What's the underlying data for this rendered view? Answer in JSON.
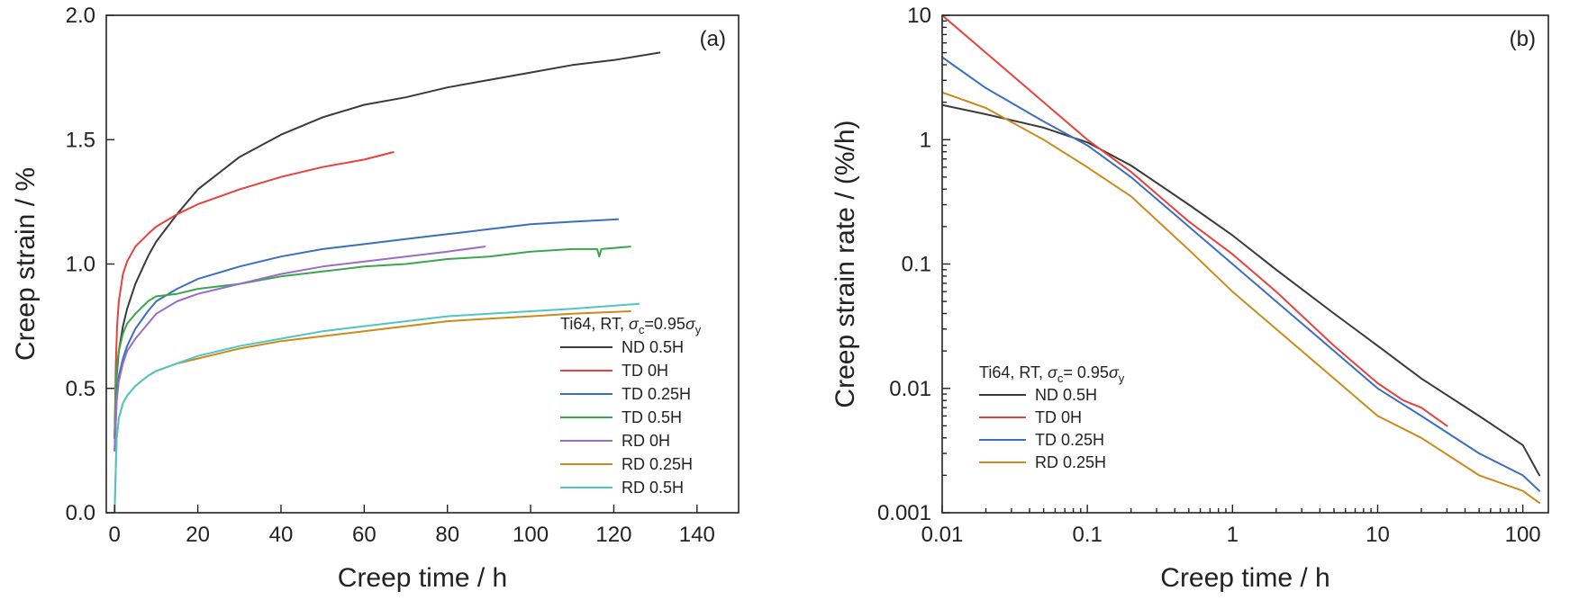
{
  "chart_data": [
    {
      "type": "line",
      "panel_label": "(a)",
      "xlabel": "Creep time / h",
      "ylabel": "Creep strain / %",
      "xlim": [
        -2,
        150
      ],
      "ylim": [
        0,
        2.0
      ],
      "xscale": "linear",
      "yscale": "linear",
      "xticks": [
        0,
        20,
        40,
        60,
        80,
        100,
        120,
        140
      ],
      "xtick_labels": [
        "0",
        "20",
        "40",
        "60",
        "80",
        "100",
        "120",
        "140"
      ],
      "yticks": [
        0,
        0.5,
        1.0,
        1.5,
        2.0
      ],
      "ytick_labels": [
        "0.0",
        "0.5",
        "1.0",
        "1.5",
        "2.0"
      ],
      "grid": false,
      "legend": {
        "placement": "bottom-right",
        "title": {
          "prefix": "Ti64, RT, ",
          "sym1": "σ",
          "sub1": "c",
          "mid": "=0.95",
          "sym2": "σ",
          "sub2": "y"
        }
      },
      "series": [
        {
          "name": "ND 0.5H",
          "color": "#3a3a3a",
          "x": [
            0,
            0.5,
            1,
            2,
            3,
            5,
            8,
            10,
            15,
            20,
            30,
            40,
            50,
            60,
            70,
            80,
            90,
            100,
            110,
            120,
            131
          ],
          "y": [
            0.3,
            0.55,
            0.65,
            0.75,
            0.82,
            0.92,
            1.03,
            1.09,
            1.2,
            1.3,
            1.43,
            1.52,
            1.59,
            1.64,
            1.67,
            1.71,
            1.74,
            1.77,
            1.8,
            1.82,
            1.85
          ]
        },
        {
          "name": "TD 0H",
          "color": "#e8413c",
          "x": [
            0,
            0.3,
            0.6,
            1,
            2,
            3,
            5,
            8,
            10,
            15,
            20,
            30,
            40,
            50,
            60,
            67
          ],
          "y": [
            0.3,
            0.6,
            0.75,
            0.85,
            0.96,
            1.01,
            1.07,
            1.12,
            1.15,
            1.2,
            1.24,
            1.3,
            1.35,
            1.39,
            1.42,
            1.45
          ]
        },
        {
          "name": "TD 0.25H",
          "color": "#3a6fc0",
          "x": [
            0,
            0.5,
            1,
            2,
            3,
            5,
            8,
            10,
            15,
            20,
            30,
            40,
            50,
            60,
            70,
            80,
            90,
            100,
            110,
            121
          ],
          "y": [
            0.25,
            0.45,
            0.55,
            0.62,
            0.67,
            0.74,
            0.81,
            0.85,
            0.9,
            0.94,
            0.99,
            1.03,
            1.06,
            1.08,
            1.1,
            1.12,
            1.14,
            1.16,
            1.17,
            1.18
          ]
        },
        {
          "name": "TD 0.5H",
          "color": "#3aa74f",
          "x": [
            0,
            0.3,
            0.6,
            1,
            2,
            3,
            5,
            8,
            10,
            15,
            20,
            30,
            40,
            50,
            60,
            70,
            80,
            90,
            100,
            110,
            116,
            116.5,
            117,
            124
          ],
          "y": [
            0.3,
            0.5,
            0.6,
            0.65,
            0.72,
            0.76,
            0.8,
            0.85,
            0.87,
            0.88,
            0.9,
            0.92,
            0.95,
            0.97,
            0.99,
            1.0,
            1.02,
            1.03,
            1.05,
            1.06,
            1.06,
            1.03,
            1.06,
            1.07
          ]
        },
        {
          "name": "RD 0H",
          "color": "#9a6cc9",
          "x": [
            0,
            0.5,
            1,
            2,
            3,
            5,
            8,
            10,
            15,
            20,
            30,
            40,
            50,
            60,
            70,
            80,
            89
          ],
          "y": [
            0.25,
            0.45,
            0.53,
            0.6,
            0.65,
            0.7,
            0.76,
            0.8,
            0.85,
            0.88,
            0.92,
            0.96,
            0.99,
            1.01,
            1.03,
            1.05,
            1.07
          ]
        },
        {
          "name": "RD 0.25H",
          "color": "#cc8a1a",
          "x": [
            0,
            0.5,
            1,
            2,
            3,
            5,
            8,
            10,
            15,
            20,
            30,
            40,
            50,
            60,
            70,
            80,
            90,
            100,
            110,
            124
          ],
          "y": [
            0.0,
            0.3,
            0.38,
            0.44,
            0.47,
            0.51,
            0.55,
            0.57,
            0.6,
            0.62,
            0.66,
            0.69,
            0.71,
            0.73,
            0.75,
            0.77,
            0.78,
            0.79,
            0.8,
            0.81
          ]
        },
        {
          "name": "RD 0.5H",
          "color": "#4fc6c2",
          "x": [
            0,
            0.5,
            1,
            2,
            3,
            5,
            8,
            10,
            15,
            20,
            30,
            40,
            50,
            60,
            70,
            80,
            90,
            100,
            110,
            126
          ],
          "y": [
            0.0,
            0.3,
            0.38,
            0.44,
            0.47,
            0.51,
            0.55,
            0.57,
            0.6,
            0.63,
            0.67,
            0.7,
            0.73,
            0.75,
            0.77,
            0.79,
            0.8,
            0.81,
            0.82,
            0.84
          ]
        }
      ]
    },
    {
      "type": "line",
      "panel_label": "(b)",
      "xlabel": "Creep time / h",
      "ylabel": "Creep strain rate / (%/h)",
      "xlim": [
        0.01,
        150
      ],
      "ylim": [
        0.001,
        10
      ],
      "xscale": "log",
      "yscale": "log",
      "xticks": [
        0.01,
        0.1,
        1,
        10,
        100
      ],
      "xtick_labels": [
        "0.01",
        "0.1",
        "1",
        "10",
        "100"
      ],
      "yticks": [
        0.001,
        0.01,
        0.1,
        1,
        10
      ],
      "ytick_labels": [
        "0.001",
        "0.01",
        "0.1",
        "1",
        "10"
      ],
      "grid": false,
      "legend": {
        "placement": "bottom-left",
        "title": {
          "prefix": "Ti64, RT, ",
          "sym1": "σ",
          "sub1": "c",
          "mid": "= 0.95",
          "sym2": "σ",
          "sub2": "y"
        }
      },
      "series": [
        {
          "name": "ND 0.5H",
          "color": "#3a3a3a",
          "x": [
            0.01,
            0.02,
            0.05,
            0.1,
            0.2,
            0.5,
            1,
            2,
            5,
            10,
            20,
            50,
            100,
            130
          ],
          "y": [
            1.9,
            1.6,
            1.25,
            0.95,
            0.62,
            0.3,
            0.17,
            0.09,
            0.04,
            0.022,
            0.012,
            0.006,
            0.0035,
            0.002
          ]
        },
        {
          "name": "TD 0H",
          "color": "#e8413c",
          "x": [
            0.01,
            0.02,
            0.05,
            0.1,
            0.2,
            0.5,
            1,
            2,
            5,
            10,
            15,
            20,
            30
          ],
          "y": [
            10,
            5,
            2.0,
            1.0,
            0.55,
            0.22,
            0.12,
            0.06,
            0.022,
            0.011,
            0.008,
            0.007,
            0.005
          ]
        },
        {
          "name": "TD 0.25H",
          "color": "#3a6fc0",
          "x": [
            0.01,
            0.02,
            0.05,
            0.1,
            0.2,
            0.5,
            1,
            2,
            5,
            10,
            20,
            50,
            100,
            130
          ],
          "y": [
            4.6,
            2.6,
            1.4,
            0.9,
            0.5,
            0.2,
            0.1,
            0.05,
            0.02,
            0.01,
            0.006,
            0.003,
            0.002,
            0.0015
          ]
        },
        {
          "name": "RD 0.25H",
          "color": "#cc8a1a",
          "x": [
            0.01,
            0.02,
            0.05,
            0.1,
            0.2,
            0.5,
            1,
            2,
            5,
            10,
            20,
            50,
            100,
            130
          ],
          "y": [
            2.4,
            1.8,
            1.0,
            0.6,
            0.35,
            0.13,
            0.06,
            0.03,
            0.012,
            0.006,
            0.004,
            0.002,
            0.0015,
            0.0012
          ]
        }
      ]
    }
  ]
}
